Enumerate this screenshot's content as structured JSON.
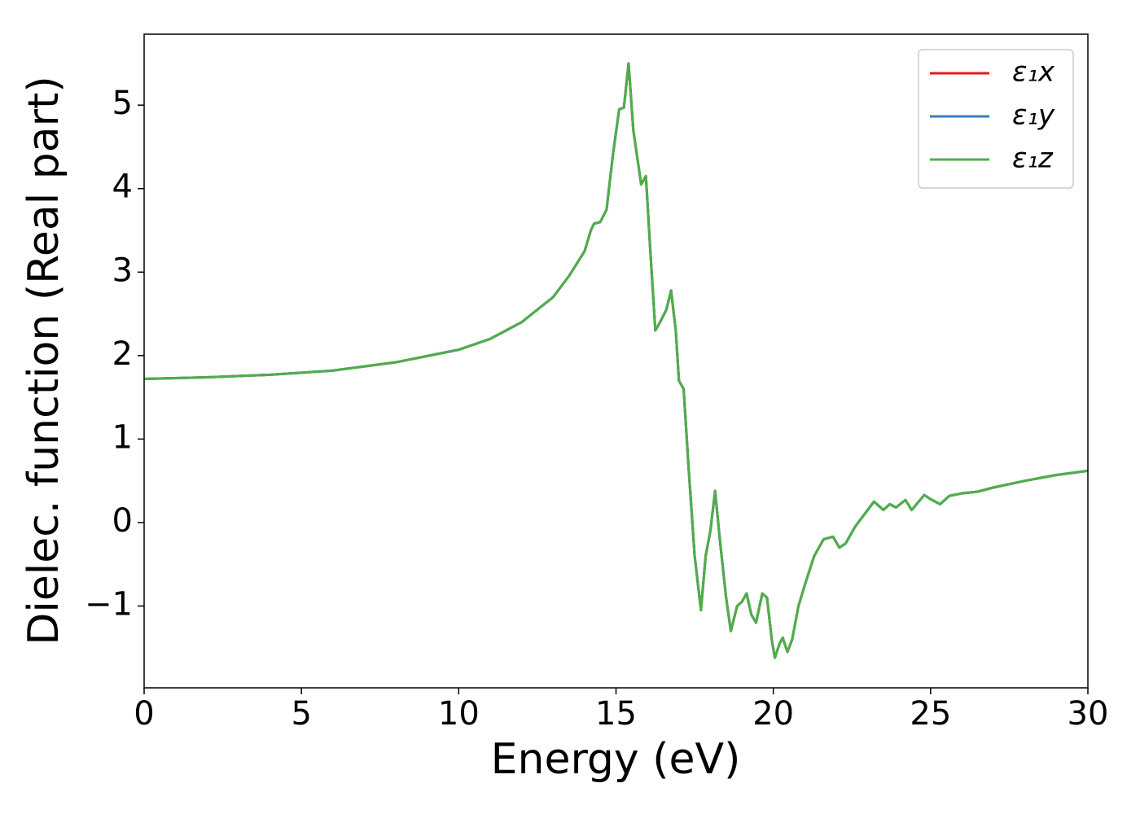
{
  "chart_data": {
    "type": "line",
    "xlabel": "Energy (eV)",
    "ylabel": "Dielec. function (Real part)",
    "xlim": [
      0,
      30
    ],
    "ylim": [
      -1.98,
      5.85
    ],
    "xticks": [
      0,
      5,
      10,
      15,
      20,
      25,
      30
    ],
    "yticks": [
      {
        "value": -1,
        "label": "−1"
      },
      0,
      1,
      2,
      3,
      4,
      5
    ],
    "legend": "upper right",
    "grid": false,
    "x": [
      0,
      2,
      4,
      6,
      8,
      10,
      11,
      12,
      13,
      13.5,
      14,
      14.2,
      14.3,
      14.5,
      14.7,
      14.9,
      15.1,
      15.25,
      15.4,
      15.55,
      15.8,
      15.95,
      16.1,
      16.25,
      16.4,
      16.6,
      16.75,
      16.9,
      17.0,
      17.15,
      17.3,
      17.5,
      17.7,
      17.85,
      18.0,
      18.15,
      18.3,
      18.5,
      18.65,
      18.85,
      19.0,
      19.15,
      19.3,
      19.45,
      19.65,
      19.8,
      19.95,
      20.05,
      20.2,
      20.3,
      20.45,
      20.6,
      20.8,
      21.0,
      21.3,
      21.6,
      21.9,
      22.1,
      22.3,
      22.6,
      23.0,
      23.2,
      23.5,
      23.7,
      23.9,
      24.2,
      24.4,
      24.8,
      25.0,
      25.3,
      25.6,
      26.0,
      26.5,
      27.0,
      28.0,
      29.0,
      30.0
    ],
    "series": [
      {
        "name": "ε₁x",
        "color": "#e41a1c",
        "values": [
          1.72,
          1.74,
          1.77,
          1.82,
          1.92,
          2.07,
          2.2,
          2.4,
          2.7,
          2.95,
          3.25,
          3.5,
          3.58,
          3.6,
          3.75,
          4.4,
          4.95,
          4.97,
          5.5,
          4.7,
          4.05,
          4.15,
          3.2,
          2.3,
          2.4,
          2.55,
          2.78,
          2.3,
          1.7,
          1.6,
          0.7,
          -0.4,
          -1.05,
          -0.4,
          -0.1,
          0.38,
          -0.2,
          -0.9,
          -1.3,
          -1.0,
          -0.95,
          -0.85,
          -1.1,
          -1.2,
          -0.85,
          -0.9,
          -1.4,
          -1.62,
          -1.45,
          -1.38,
          -1.55,
          -1.4,
          -1.0,
          -0.75,
          -0.4,
          -0.2,
          -0.17,
          -0.3,
          -0.25,
          -0.05,
          0.15,
          0.25,
          0.15,
          0.22,
          0.18,
          0.27,
          0.15,
          0.33,
          0.28,
          0.22,
          0.32,
          0.35,
          0.37,
          0.42,
          0.5,
          0.57,
          0.62
        ]
      },
      {
        "name": "ε₁y",
        "color": "#377eb8",
        "values": [
          1.72,
          1.74,
          1.77,
          1.82,
          1.92,
          2.07,
          2.2,
          2.4,
          2.7,
          2.95,
          3.25,
          3.5,
          3.58,
          3.6,
          3.75,
          4.4,
          4.95,
          4.97,
          5.5,
          4.7,
          4.05,
          4.15,
          3.2,
          2.3,
          2.4,
          2.55,
          2.78,
          2.3,
          1.7,
          1.6,
          0.7,
          -0.4,
          -1.05,
          -0.4,
          -0.1,
          0.38,
          -0.2,
          -0.9,
          -1.3,
          -1.0,
          -0.95,
          -0.85,
          -1.1,
          -1.2,
          -0.85,
          -0.9,
          -1.4,
          -1.62,
          -1.45,
          -1.38,
          -1.55,
          -1.4,
          -1.0,
          -0.75,
          -0.4,
          -0.2,
          -0.17,
          -0.3,
          -0.25,
          -0.05,
          0.15,
          0.25,
          0.15,
          0.22,
          0.18,
          0.27,
          0.15,
          0.33,
          0.28,
          0.22,
          0.32,
          0.35,
          0.37,
          0.42,
          0.5,
          0.57,
          0.62
        ]
      },
      {
        "name": "ε₁z",
        "color": "#4daf4a",
        "values": [
          1.72,
          1.74,
          1.77,
          1.82,
          1.92,
          2.07,
          2.2,
          2.4,
          2.7,
          2.95,
          3.25,
          3.5,
          3.58,
          3.6,
          3.75,
          4.4,
          4.95,
          4.97,
          5.5,
          4.7,
          4.05,
          4.15,
          3.2,
          2.3,
          2.4,
          2.55,
          2.78,
          2.3,
          1.7,
          1.6,
          0.7,
          -0.4,
          -1.05,
          -0.4,
          -0.1,
          0.38,
          -0.2,
          -0.9,
          -1.3,
          -1.0,
          -0.95,
          -0.85,
          -1.1,
          -1.2,
          -0.85,
          -0.9,
          -1.4,
          -1.62,
          -1.45,
          -1.38,
          -1.55,
          -1.4,
          -1.0,
          -0.75,
          -0.4,
          -0.2,
          -0.17,
          -0.3,
          -0.25,
          -0.05,
          0.15,
          0.25,
          0.15,
          0.22,
          0.18,
          0.27,
          0.15,
          0.33,
          0.28,
          0.22,
          0.32,
          0.35,
          0.37,
          0.42,
          0.5,
          0.57,
          0.62
        ]
      }
    ]
  }
}
